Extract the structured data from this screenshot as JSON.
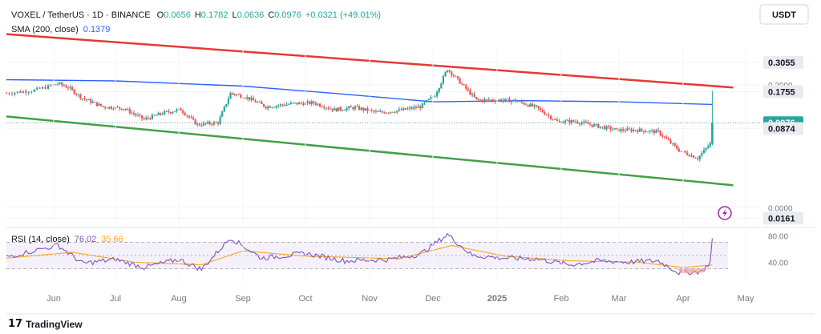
{
  "header": {
    "symbol": "VOXEL / TetherUS · 1D · BINANCE",
    "o_label": "O",
    "o_value": "0.0656",
    "h_label": "H",
    "h_value": "0.1782",
    "l_label": "L",
    "l_value": "0.0636",
    "c_label": "C",
    "c_value": "0.0976",
    "change": "+0.0321 (+49.01%)",
    "sma_label": "SMA (200, close)",
    "sma_value": "0.1379",
    "currency_button": "USDT"
  },
  "rsi_header": {
    "label": "RSI (14, close)",
    "rsi_value": "76.02",
    "ma_value": "35.66"
  },
  "colors": {
    "up": "#26a69a",
    "down": "#ef5350",
    "sma": "#2962ff",
    "channel_top": "#e53935",
    "channel_bottom": "#43a047",
    "rsi_line": "#7e57c2",
    "rsi_ma": "#f9a825",
    "price_badge": "#26a69a",
    "reversal_icon": "#9c27b0"
  },
  "chart_data": {
    "type": "candlestick",
    "symbol": "VOXEL / TetherUS",
    "interval": "1D",
    "exchange": "BINANCE",
    "time_axis": [
      "Jun",
      "Jul",
      "Aug",
      "Sep",
      "Oct",
      "Nov",
      "Dec",
      "2025",
      "Feb",
      "Mar",
      "Apr",
      "May"
    ],
    "price_axis_ticks": [
      "0.3055",
      "0.2000",
      "0.1755",
      "0.0976",
      "0.0874",
      "0.0161",
      "0.0000"
    ],
    "price_scale": "log",
    "price_labels": [
      {
        "value": "0.3055",
        "style": "boxed"
      },
      {
        "value": "0.1755",
        "style": "boxed"
      },
      {
        "value": "0.0976",
        "style": "current"
      },
      {
        "value": "0.0874",
        "style": "boxed"
      },
      {
        "value": "0.0161",
        "style": "boxed"
      }
    ],
    "ohlc_last": {
      "open": 0.0656,
      "high": 0.1782,
      "low": 0.0636,
      "close": 0.0976,
      "change": 0.0321,
      "change_pct": 49.01
    },
    "close_path": [
      [
        "2024-05-15",
        0.17
      ],
      [
        "2024-05-25",
        0.18
      ],
      [
        "2024-06-03",
        0.205
      ],
      [
        "2024-06-08",
        0.19
      ],
      [
        "2024-06-15",
        0.155
      ],
      [
        "2024-06-25",
        0.132
      ],
      [
        "2024-07-05",
        0.128
      ],
      [
        "2024-07-15",
        0.104
      ],
      [
        "2024-07-25",
        0.118
      ],
      [
        "2024-08-02",
        0.125
      ],
      [
        "2024-08-10",
        0.094
      ],
      [
        "2024-08-20",
        0.098
      ],
      [
        "2024-08-26",
        0.17
      ],
      [
        "2024-09-02",
        0.16
      ],
      [
        "2024-09-12",
        0.132
      ],
      [
        "2024-09-25",
        0.14
      ],
      [
        "2024-10-05",
        0.142
      ],
      [
        "2024-10-15",
        0.125
      ],
      [
        "2024-10-25",
        0.13
      ],
      [
        "2024-11-05",
        0.118
      ],
      [
        "2024-11-15",
        0.123
      ],
      [
        "2024-11-25",
        0.132
      ],
      [
        "2024-12-02",
        0.165
      ],
      [
        "2024-12-08",
        0.27
      ],
      [
        "2024-12-14",
        0.21
      ],
      [
        "2024-12-22",
        0.15
      ],
      [
        "2025-01-02",
        0.15
      ],
      [
        "2025-01-10",
        0.148
      ],
      [
        "2025-01-20",
        0.13
      ],
      [
        "2025-01-30",
        0.1
      ],
      [
        "2025-02-08",
        0.1
      ],
      [
        "2025-02-18",
        0.092
      ],
      [
        "2025-02-28",
        0.085
      ],
      [
        "2025-03-10",
        0.085
      ],
      [
        "2025-03-20",
        0.082
      ],
      [
        "2025-03-30",
        0.058
      ],
      [
        "2025-04-08",
        0.05
      ],
      [
        "2025-04-14",
        0.0656
      ],
      [
        "2025-04-15",
        0.0976
      ]
    ],
    "sma_200_path": [
      [
        "2024-05-15",
        0.22
      ],
      [
        "2024-07-01",
        0.215
      ],
      [
        "2024-09-01",
        0.195
      ],
      [
        "2024-10-15",
        0.17
      ],
      [
        "2024-12-01",
        0.145
      ],
      [
        "2025-01-15",
        0.148
      ],
      [
        "2025-03-01",
        0.145
      ],
      [
        "2025-04-15",
        0.1379
      ]
    ],
    "channel_top": {
      "start": [
        "2024-05-15",
        0.52
      ],
      "end": [
        "2025-04-25",
        0.19
      ]
    },
    "channel_bottom": {
      "start": [
        "2024-05-15",
        0.11
      ],
      "end": [
        "2025-04-25",
        0.03
      ]
    },
    "rsi": {
      "period": 14,
      "value": 76.02,
      "ma_value": 35.66,
      "levels": [
        70,
        50,
        30
      ],
      "axis_ticks": [
        "80.00",
        "40.00"
      ],
      "rsi_path": [
        [
          "2024-05-15",
          48
        ],
        [
          "2024-06-03",
          66
        ],
        [
          "2024-06-15",
          38
        ],
        [
          "2024-07-01",
          44
        ],
        [
          "2024-07-15",
          32
        ],
        [
          "2024-08-01",
          44
        ],
        [
          "2024-08-12",
          29
        ],
        [
          "2024-08-26",
          77
        ],
        [
          "2024-09-10",
          46
        ],
        [
          "2024-10-01",
          53
        ],
        [
          "2024-10-20",
          42
        ],
        [
          "2024-11-10",
          44
        ],
        [
          "2024-11-25",
          52
        ],
        [
          "2024-12-08",
          82
        ],
        [
          "2024-12-20",
          50
        ],
        [
          "2025-01-05",
          46
        ],
        [
          "2025-01-20",
          45
        ],
        [
          "2025-02-05",
          36
        ],
        [
          "2025-02-20",
          42
        ],
        [
          "2025-03-05",
          40
        ],
        [
          "2025-03-20",
          42
        ],
        [
          "2025-03-30",
          24
        ],
        [
          "2025-04-10",
          26
        ],
        [
          "2025-04-14",
          40
        ],
        [
          "2025-04-15",
          76
        ]
      ],
      "ma_path": [
        [
          "2024-05-15",
          46
        ],
        [
          "2024-06-10",
          55
        ],
        [
          "2024-07-10",
          40
        ],
        [
          "2024-08-12",
          36
        ],
        [
          "2024-09-01",
          57
        ],
        [
          "2024-10-01",
          49
        ],
        [
          "2024-11-15",
          45
        ],
        [
          "2024-12-10",
          65
        ],
        [
          "2025-01-05",
          49
        ],
        [
          "2025-02-05",
          42
        ],
        [
          "2025-03-10",
          40
        ],
        [
          "2025-04-01",
          32
        ],
        [
          "2025-04-15",
          35.66
        ]
      ]
    }
  },
  "footer": {
    "brand": "TradingView"
  }
}
